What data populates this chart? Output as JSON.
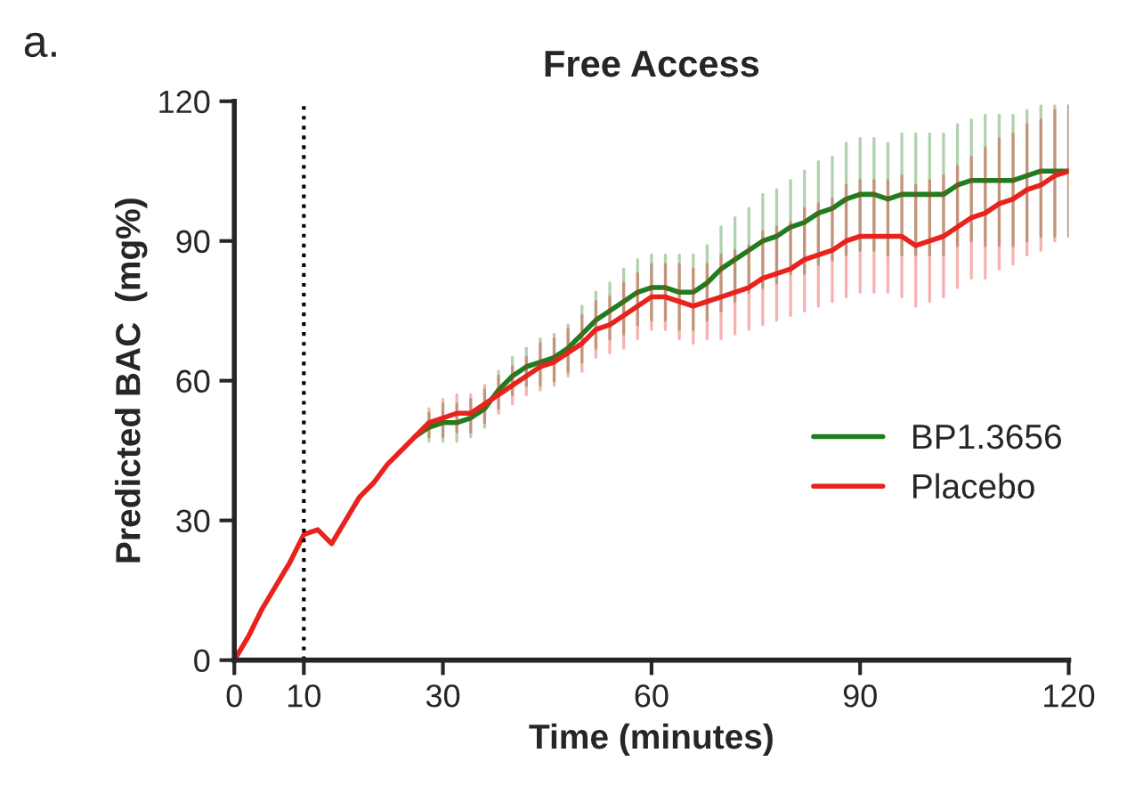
{
  "chart_data": {
    "type": "line",
    "title": "Free Access",
    "xlabel": "Time (minutes)",
    "ylabel": "Predicted BAC  (mg%)",
    "annotations": [
      "a."
    ],
    "x": [
      0,
      2,
      4,
      6,
      8,
      10,
      12,
      14,
      16,
      18,
      20,
      22,
      24,
      26,
      28,
      30,
      32,
      34,
      36,
      38,
      40,
      42,
      44,
      46,
      48,
      50,
      52,
      54,
      56,
      58,
      60,
      62,
      64,
      66,
      68,
      70,
      72,
      74,
      76,
      78,
      80,
      82,
      84,
      86,
      88,
      90,
      92,
      94,
      96,
      98,
      100,
      102,
      104,
      106,
      108,
      110,
      112,
      114,
      116,
      118,
      120
    ],
    "series": [
      {
        "name": "BP1.3656",
        "color": "#1e7d1e",
        "values": [
          null,
          null,
          null,
          null,
          null,
          null,
          null,
          null,
          null,
          null,
          null,
          null,
          null,
          48,
          50,
          51,
          51,
          52,
          54,
          58,
          61,
          63,
          64,
          65,
          67,
          70,
          73,
          75,
          77,
          79,
          80,
          80,
          79,
          79,
          81,
          84,
          86,
          88,
          90,
          91,
          93,
          94,
          96,
          97,
          99,
          100,
          100,
          99,
          100,
          100,
          100,
          100,
          102,
          103,
          103,
          103,
          103,
          104,
          105,
          105,
          105
        ],
        "errors": [
          null,
          null,
          null,
          null,
          null,
          null,
          null,
          null,
          null,
          null,
          null,
          null,
          null,
          null,
          3,
          4,
          4,
          4,
          4,
          4,
          4,
          4,
          5,
          5,
          5,
          6,
          6,
          6,
          7,
          7,
          7,
          7,
          8,
          8,
          8,
          9,
          9,
          9,
          10,
          10,
          10,
          11,
          11,
          11,
          12,
          12,
          12,
          12,
          13,
          13,
          13,
          13,
          13,
          13,
          14,
          14,
          14,
          14,
          14,
          14,
          14
        ]
      },
      {
        "name": "Placebo",
        "color": "#e8221c",
        "values": [
          0,
          5,
          11,
          16,
          21,
          27,
          28,
          25,
          30,
          35,
          38,
          42,
          45,
          48,
          51,
          52,
          53,
          53,
          55,
          57,
          59,
          61,
          63,
          64,
          66,
          68,
          71,
          72,
          74,
          76,
          78,
          78,
          77,
          76,
          77,
          78,
          79,
          80,
          82,
          83,
          84,
          86,
          87,
          88,
          90,
          91,
          91,
          91,
          91,
          89,
          90,
          91,
          93,
          95,
          96,
          98,
          99,
          101,
          102,
          104,
          105
        ],
        "errors": [
          null,
          null,
          null,
          null,
          null,
          null,
          null,
          null,
          null,
          null,
          null,
          null,
          null,
          null,
          3,
          4,
          4,
          4,
          4,
          4,
          4,
          4,
          5,
          5,
          5,
          6,
          6,
          6,
          7,
          7,
          7,
          7,
          8,
          8,
          8,
          9,
          9,
          9,
          10,
          10,
          10,
          11,
          11,
          11,
          12,
          12,
          12,
          12,
          13,
          13,
          13,
          13,
          13,
          13,
          14,
          14,
          14,
          14,
          14,
          14,
          14
        ]
      }
    ],
    "xlim": [
      0,
      120
    ],
    "xticks": [
      0,
      10,
      30,
      60,
      90,
      120
    ],
    "ylim": [
      0,
      120
    ],
    "yticks": [
      0,
      30,
      60,
      90,
      120
    ],
    "ref_lines": [
      {
        "axis": "x",
        "value": 10,
        "line_style": "dotted",
        "color": "#000000"
      }
    ],
    "grid": false,
    "legend": "right",
    "marker": "none",
    "line_style": "solid"
  }
}
